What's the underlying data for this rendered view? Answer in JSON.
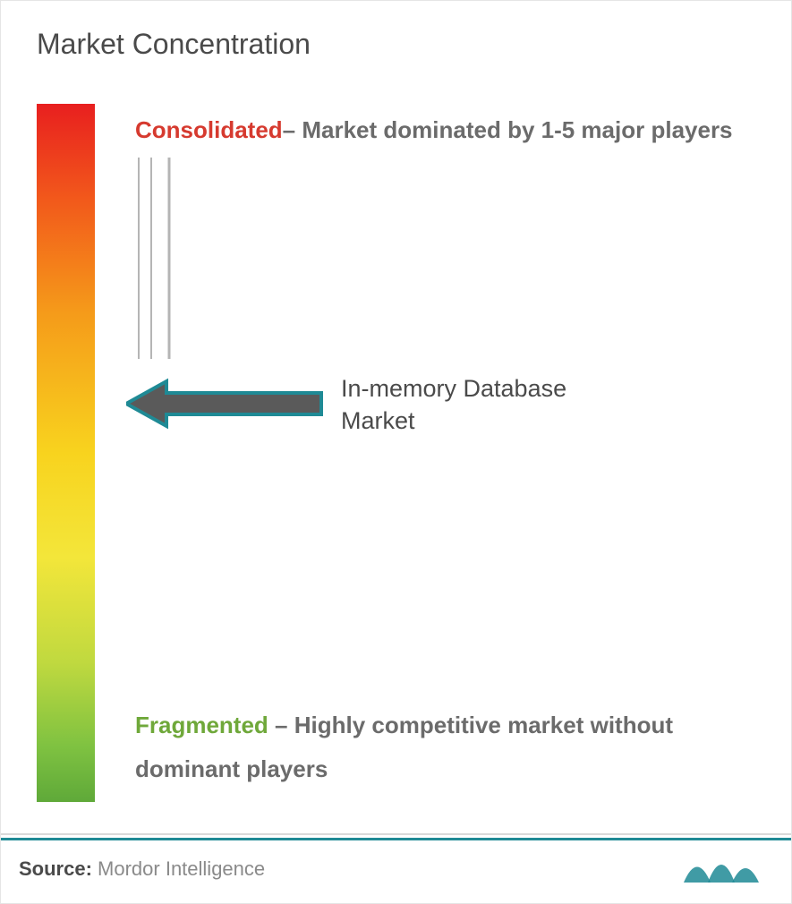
{
  "title": "Market Concentration",
  "title_color": "#4a4a4a",
  "gradient": {
    "colors": [
      "#e81f1f",
      "#f25a1b",
      "#f59b1a",
      "#f8d31e",
      "#f3e63a",
      "#c0d93f",
      "#7fc241",
      "#5fa939"
    ],
    "stops": [
      0,
      14,
      30,
      50,
      65,
      80,
      92,
      100
    ]
  },
  "consolidated": {
    "label": "Consolidated",
    "label_color": "#d63a2f",
    "description": "– Market dominated by 1-5 major players",
    "desc_color": "#6b6b6b"
  },
  "fragmented": {
    "label": "Fragmented",
    "label_color": "#6fa83a",
    "description": " – Highly competitive market without dominant players",
    "desc_color": "#6b6b6b"
  },
  "marker": {
    "label": "In-memory Database Market",
    "label_color": "#4a4a4a",
    "position_pct": 40,
    "arrow_fill": "#5a5a5a",
    "arrow_outline": "#1f8a95"
  },
  "tick_color": "#b5b5b5",
  "divider_color": "#d9d9d9",
  "divider_accent": "#1f8a95",
  "source": {
    "label": "Source:",
    "value": " Mordor Intelligence",
    "label_color": "#4a4a4a",
    "value_color": "#8a8a8a"
  },
  "logo_color": "#1f8a95",
  "background": "#ffffff"
}
